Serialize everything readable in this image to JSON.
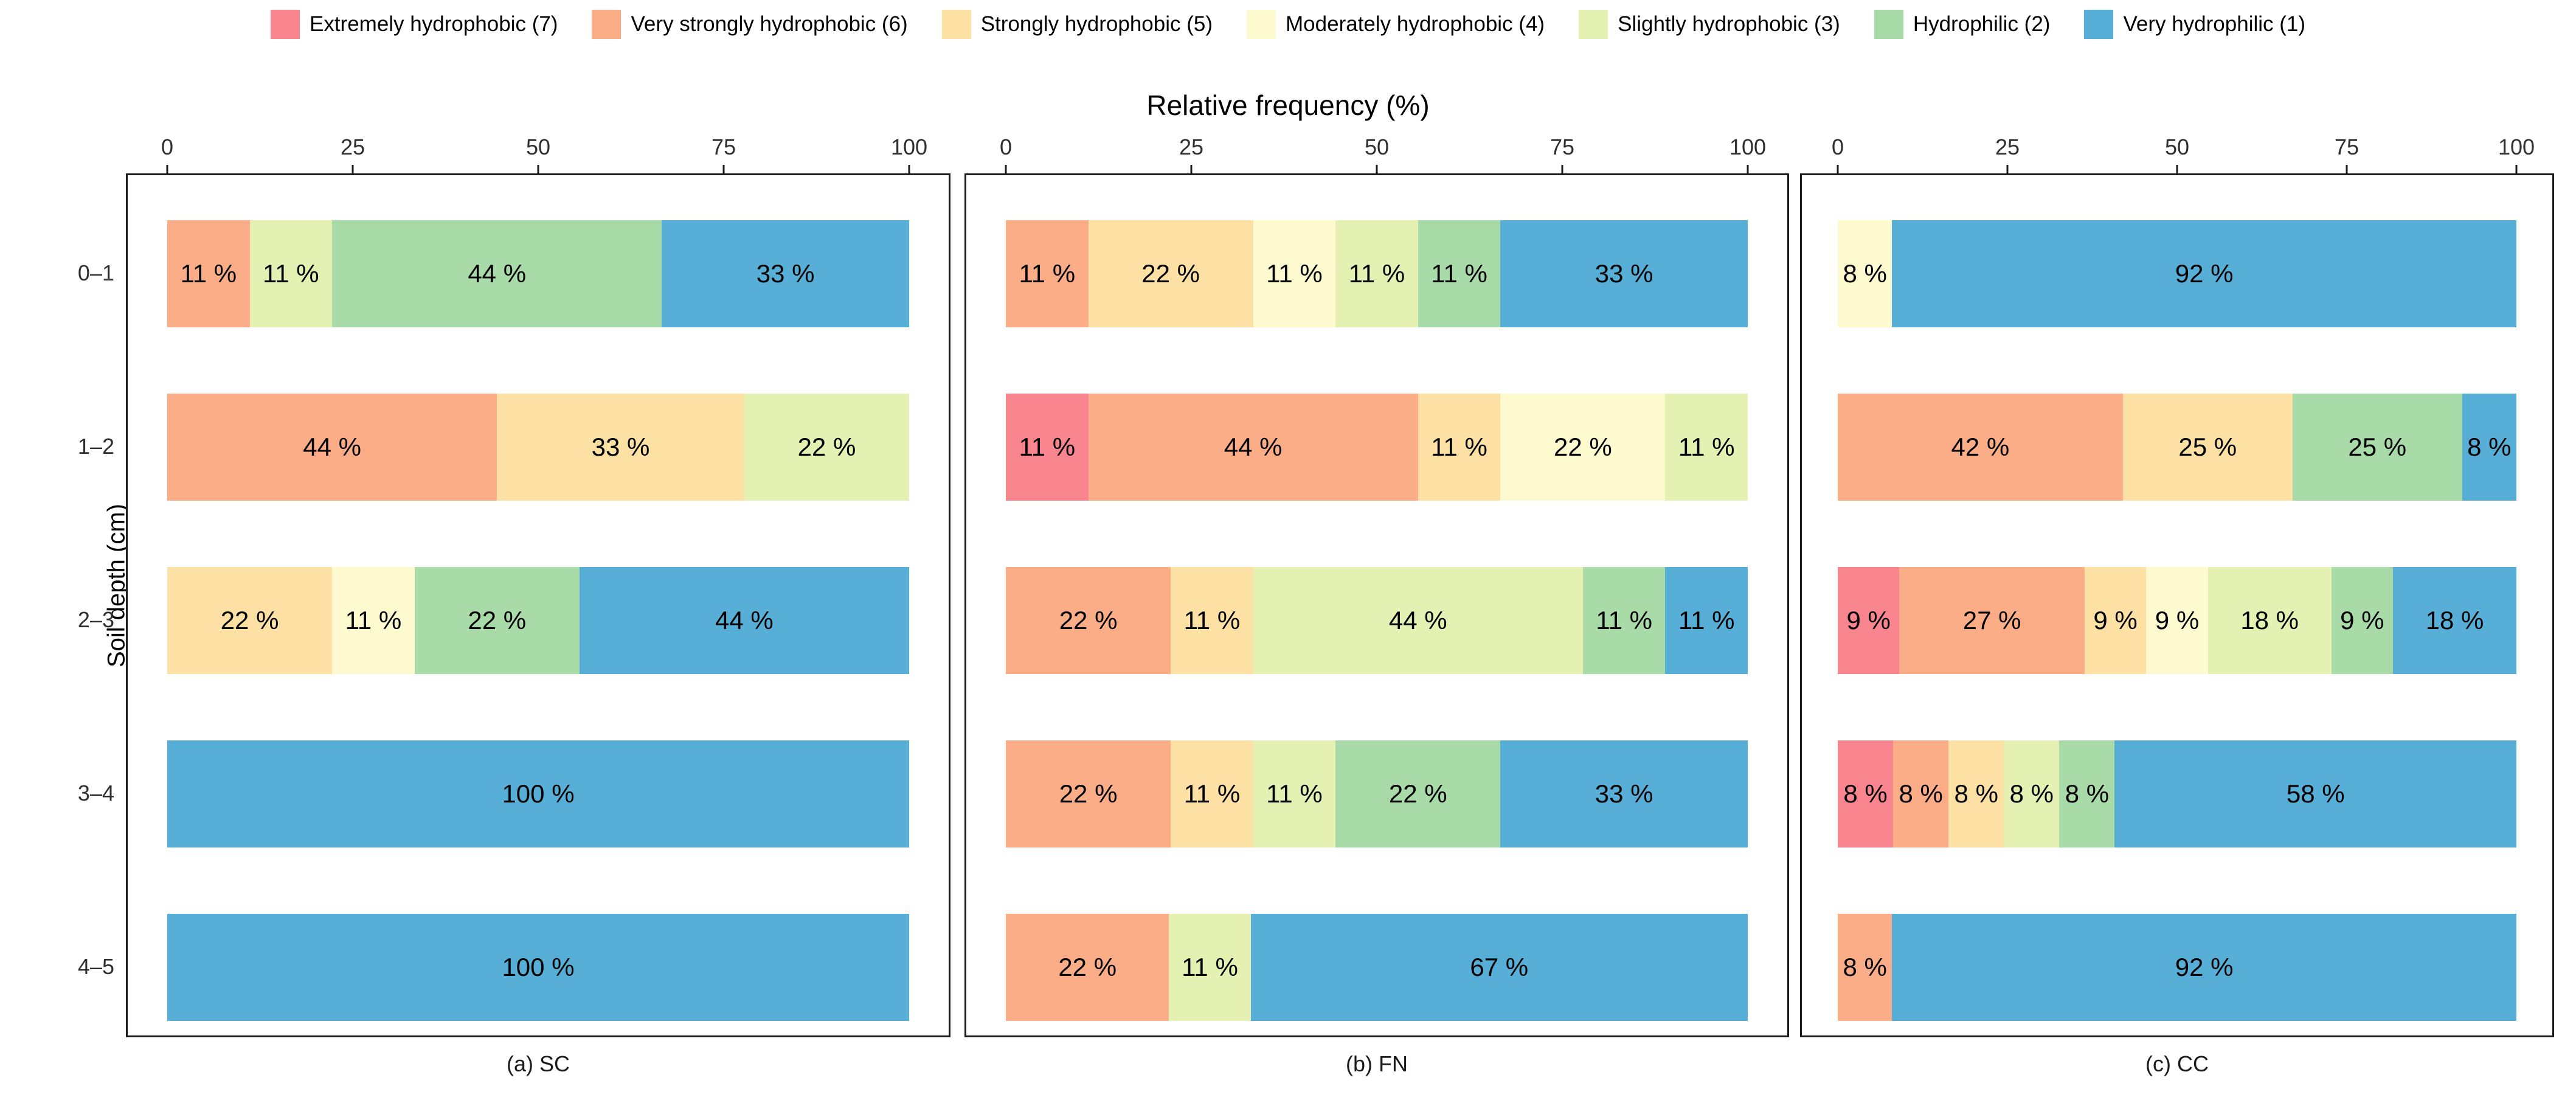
{
  "figure": {
    "background": "#ffffff"
  },
  "chart_data": {
    "type": "bar",
    "variant": "horizontal-stacked-percent",
    "title": "Relative frequency (%)",
    "xlabel": "Relative frequency (%)",
    "ylabel": "Soil depth (cm)",
    "xlim": [
      0,
      100
    ],
    "xticks": [
      "0",
      "25",
      "50",
      "75",
      "100"
    ],
    "xtick_values": [
      0,
      25,
      50,
      75,
      100
    ],
    "depth_categories": [
      "0–1",
      "1–2",
      "2–3",
      "3–4",
      "4–5"
    ],
    "grid": false,
    "legend_position": "top",
    "classes": [
      {
        "key": "7",
        "label": "Extremely hydrophobic (7)",
        "color": "#F9858F"
      },
      {
        "key": "6",
        "label": "Very strongly hydrophobic (6)",
        "color": "#FBAD88"
      },
      {
        "key": "5",
        "label": "Strongly hydrophobic (5)",
        "color": "#FCE0A4"
      },
      {
        "key": "4",
        "label": "Moderately hydrophobic (4)",
        "color": "#FCFACE"
      },
      {
        "key": "3",
        "label": "Slightly hydrophobic (3)",
        "color": "#E4F1B2"
      },
      {
        "key": "2",
        "label": "Hydrophilic (2)",
        "color": "#A8DBA8"
      },
      {
        "key": "1",
        "label": "Very hydrophilic (1)",
        "color": "#57AFD7"
      }
    ],
    "panels": [
      {
        "caption": "(a) SC",
        "rows": [
          {
            "depth": "0–1",
            "segments": [
              {
                "class": "6",
                "value": 11,
                "label": "11 %"
              },
              {
                "class": "3",
                "value": 11,
                "label": "11 %"
              },
              {
                "class": "2",
                "value": 44,
                "label": "44 %"
              },
              {
                "class": "1",
                "value": 33,
                "label": "33 %"
              }
            ]
          },
          {
            "depth": "1–2",
            "segments": [
              {
                "class": "6",
                "value": 44,
                "label": "44 %"
              },
              {
                "class": "5",
                "value": 33,
                "label": "33 %"
              },
              {
                "class": "3",
                "value": 22,
                "label": "22 %"
              }
            ]
          },
          {
            "depth": "2–3",
            "segments": [
              {
                "class": "5",
                "value": 22,
                "label": "22 %"
              },
              {
                "class": "4",
                "value": 11,
                "label": "11 %"
              },
              {
                "class": "2",
                "value": 22,
                "label": "22 %"
              },
              {
                "class": "1",
                "value": 44,
                "label": "44 %"
              }
            ]
          },
          {
            "depth": "3–4",
            "segments": [
              {
                "class": "1",
                "value": 100,
                "label": "100 %"
              }
            ]
          },
          {
            "depth": "4–5",
            "segments": [
              {
                "class": "1",
                "value": 100,
                "label": "100 %"
              }
            ]
          }
        ]
      },
      {
        "caption": "(b) FN",
        "rows": [
          {
            "depth": "0–1",
            "segments": [
              {
                "class": "6",
                "value": 11,
                "label": "11 %"
              },
              {
                "class": "5",
                "value": 22,
                "label": "22 %"
              },
              {
                "class": "4",
                "value": 11,
                "label": "11 %"
              },
              {
                "class": "3",
                "value": 11,
                "label": "11 %"
              },
              {
                "class": "2",
                "value": 11,
                "label": "11 %"
              },
              {
                "class": "1",
                "value": 33,
                "label": "33 %"
              }
            ]
          },
          {
            "depth": "1–2",
            "segments": [
              {
                "class": "7",
                "value": 11,
                "label": "11 %"
              },
              {
                "class": "6",
                "value": 44,
                "label": "44 %"
              },
              {
                "class": "5",
                "value": 11,
                "label": "11 %"
              },
              {
                "class": "4",
                "value": 22,
                "label": "22 %"
              },
              {
                "class": "3",
                "value": 11,
                "label": "11 %"
              }
            ]
          },
          {
            "depth": "2–3",
            "segments": [
              {
                "class": "6",
                "value": 22,
                "label": "22 %"
              },
              {
                "class": "5",
                "value": 11,
                "label": "11 %"
              },
              {
                "class": "3",
                "value": 44,
                "label": "44 %"
              },
              {
                "class": "2",
                "value": 11,
                "label": "11 %"
              },
              {
                "class": "1",
                "value": 11,
                "label": "11 %"
              }
            ]
          },
          {
            "depth": "3–4",
            "segments": [
              {
                "class": "6",
                "value": 22,
                "label": "22 %"
              },
              {
                "class": "5",
                "value": 11,
                "label": "11 %"
              },
              {
                "class": "3",
                "value": 11,
                "label": "11 %"
              },
              {
                "class": "2",
                "value": 22,
                "label": "22 %"
              },
              {
                "class": "1",
                "value": 33,
                "label": "33 %"
              }
            ]
          },
          {
            "depth": "4–5",
            "segments": [
              {
                "class": "6",
                "value": 22,
                "label": "22 %"
              },
              {
                "class": "3",
                "value": 11,
                "label": "11 %"
              },
              {
                "class": "1",
                "value": 67,
                "label": "67 %"
              }
            ]
          }
        ]
      },
      {
        "caption": "(c) CC",
        "rows": [
          {
            "depth": "0–1",
            "segments": [
              {
                "class": "4",
                "value": 8,
                "label": "8 %"
              },
              {
                "class": "1",
                "value": 92,
                "label": "92 %"
              }
            ]
          },
          {
            "depth": "1–2",
            "segments": [
              {
                "class": "6",
                "value": 42,
                "label": "42 %"
              },
              {
                "class": "5",
                "value": 25,
                "label": "25 %"
              },
              {
                "class": "2",
                "value": 25,
                "label": "25 %"
              },
              {
                "class": "1",
                "value": 8,
                "label": "8 %"
              }
            ]
          },
          {
            "depth": "2–3",
            "segments": [
              {
                "class": "7",
                "value": 9,
                "label": "9 %"
              },
              {
                "class": "6",
                "value": 27,
                "label": "27 %"
              },
              {
                "class": "5",
                "value": 9,
                "label": "9 %"
              },
              {
                "class": "4",
                "value": 9,
                "label": "9 %"
              },
              {
                "class": "3",
                "value": 18,
                "label": "18 %"
              },
              {
                "class": "2",
                "value": 9,
                "label": "9 %"
              },
              {
                "class": "1",
                "value": 18,
                "label": "18 %"
              }
            ]
          },
          {
            "depth": "3–4",
            "segments": [
              {
                "class": "7",
                "value": 8,
                "label": "8 %"
              },
              {
                "class": "6",
                "value": 8,
                "label": "8 %"
              },
              {
                "class": "5",
                "value": 8,
                "label": "8 %"
              },
              {
                "class": "3",
                "value": 8,
                "label": "8 %"
              },
              {
                "class": "2",
                "value": 8,
                "label": "8 %"
              },
              {
                "class": "1",
                "value": 58,
                "label": "58 %"
              }
            ]
          },
          {
            "depth": "4–5",
            "segments": [
              {
                "class": "6",
                "value": 8,
                "label": "8 %"
              },
              {
                "class": "1",
                "value": 92,
                "label": "92 %"
              }
            ]
          }
        ]
      }
    ]
  }
}
